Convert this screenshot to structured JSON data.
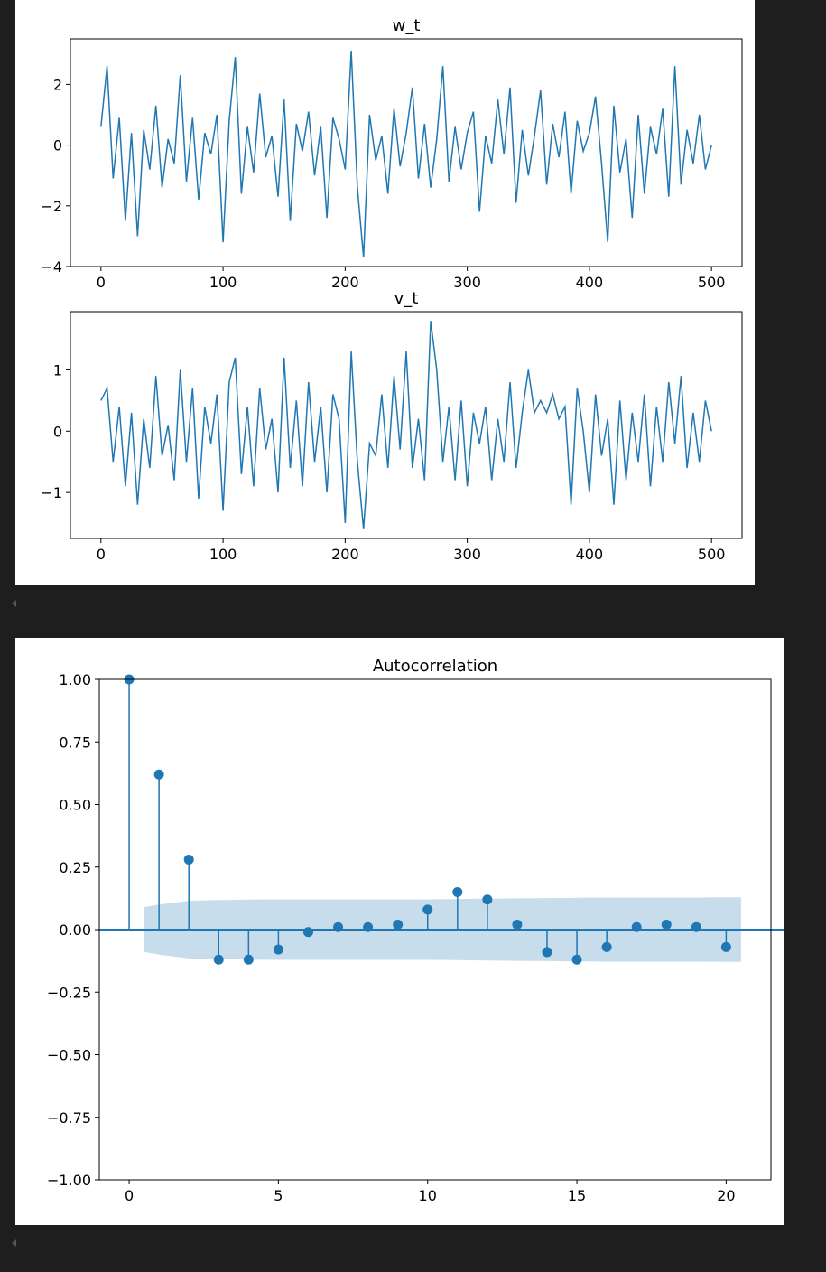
{
  "colors": {
    "series": "#1f77b4",
    "band": "#1f77b4",
    "background": "#1e1e1e"
  },
  "chart_data": [
    {
      "type": "line",
      "title": "w_t",
      "xlabel": "",
      "ylabel": "",
      "xlim": [
        -25,
        525
      ],
      "ylim": [
        -4,
        3.5
      ],
      "xticks": [
        0,
        100,
        200,
        300,
        400,
        500
      ],
      "yticks": [
        2,
        0,
        -2,
        -4
      ],
      "ytick_labels": [
        "2",
        "0",
        "−2",
        "−4"
      ],
      "series": [
        {
          "x": [
            0,
            5,
            10,
            15,
            20,
            25,
            30,
            35,
            40,
            45,
            50,
            55,
            60,
            65,
            70,
            75,
            80,
            85,
            90,
            95,
            100,
            105,
            110,
            115,
            120,
            125,
            130,
            135,
            140,
            145,
            150,
            155,
            160,
            165,
            170,
            175,
            180,
            185,
            190,
            195,
            200,
            205,
            210,
            215,
            220,
            225,
            230,
            235,
            240,
            245,
            250,
            255,
            260,
            265,
            270,
            275,
            280,
            285,
            290,
            295,
            300,
            305,
            310,
            315,
            320,
            325,
            330,
            335,
            340,
            345,
            350,
            355,
            360,
            365,
            370,
            375,
            380,
            385,
            390,
            395,
            400,
            405,
            410,
            415,
            420,
            425,
            430,
            435,
            440,
            445,
            450,
            455,
            460,
            465,
            470,
            475,
            480,
            485,
            490,
            495,
            500
          ],
          "y": [
            0.6,
            2.6,
            -1.1,
            0.9,
            -2.5,
            0.4,
            -3.0,
            0.5,
            -0.8,
            1.3,
            -1.4,
            0.2,
            -0.6,
            2.3,
            -1.2,
            0.9,
            -1.8,
            0.4,
            -0.3,
            1.0,
            -3.2,
            0.8,
            2.9,
            -1.6,
            0.6,
            -0.9,
            1.7,
            -0.4,
            0.3,
            -1.7,
            1.5,
            -2.5,
            0.7,
            -0.2,
            1.1,
            -1.0,
            0.6,
            -2.4,
            0.9,
            0.2,
            -0.8,
            3.1,
            -1.4,
            -3.7,
            1.0,
            -0.5,
            0.3,
            -1.6,
            1.2,
            -0.7,
            0.4,
            1.9,
            -1.1,
            0.7,
            -1.4,
            0.2,
            2.6,
            -1.2,
            0.6,
            -0.8,
            0.4,
            1.1,
            -2.2,
            0.3,
            -0.6,
            1.5,
            -0.3,
            1.9,
            -1.9,
            0.5,
            -1.0,
            0.3,
            1.8,
            -1.3,
            0.7,
            -0.4,
            1.1,
            -1.6,
            0.8,
            -0.2,
            0.4,
            1.6,
            -0.6,
            -3.2,
            1.3,
            -0.9,
            0.2,
            -2.4,
            1.0,
            -1.6,
            0.6,
            -0.3,
            1.2,
            -1.7,
            2.6,
            -1.3,
            0.5,
            -0.6,
            1.0,
            -0.8,
            0.0
          ]
        }
      ]
    },
    {
      "type": "line",
      "title": "v_t",
      "xlabel": "",
      "ylabel": "",
      "xlim": [
        -25,
        525
      ],
      "ylim": [
        -1.75,
        1.95
      ],
      "xticks": [
        0,
        100,
        200,
        300,
        400,
        500
      ],
      "yticks": [
        1,
        0,
        -1
      ],
      "ytick_labels": [
        "1",
        "0",
        "−1"
      ],
      "series": [
        {
          "x": [
            0,
            5,
            10,
            15,
            20,
            25,
            30,
            35,
            40,
            45,
            50,
            55,
            60,
            65,
            70,
            75,
            80,
            85,
            90,
            95,
            100,
            105,
            110,
            115,
            120,
            125,
            130,
            135,
            140,
            145,
            150,
            155,
            160,
            165,
            170,
            175,
            180,
            185,
            190,
            195,
            200,
            205,
            210,
            215,
            220,
            225,
            230,
            235,
            240,
            245,
            250,
            255,
            260,
            265,
            270,
            275,
            280,
            285,
            290,
            295,
            300,
            305,
            310,
            315,
            320,
            325,
            330,
            335,
            340,
            345,
            350,
            355,
            360,
            365,
            370,
            375,
            380,
            385,
            390,
            395,
            400,
            405,
            410,
            415,
            420,
            425,
            430,
            435,
            440,
            445,
            450,
            455,
            460,
            465,
            470,
            475,
            480,
            485,
            490,
            495,
            500
          ],
          "y": [
            0.5,
            0.7,
            -0.5,
            0.4,
            -0.9,
            0.3,
            -1.2,
            0.2,
            -0.6,
            0.9,
            -0.4,
            0.1,
            -0.8,
            1.0,
            -0.5,
            0.7,
            -1.1,
            0.4,
            -0.2,
            0.6,
            -1.3,
            0.8,
            1.2,
            -0.7,
            0.4,
            -0.9,
            0.7,
            -0.3,
            0.2,
            -1.0,
            1.2,
            -0.6,
            0.5,
            -0.9,
            0.8,
            -0.5,
            0.4,
            -1.0,
            0.6,
            0.2,
            -1.5,
            1.3,
            -0.5,
            -1.6,
            -0.2,
            -0.4,
            0.6,
            -0.6,
            0.9,
            -0.3,
            1.3,
            -0.6,
            0.2,
            -0.8,
            1.8,
            1.0,
            -0.5,
            0.4,
            -0.8,
            0.5,
            -0.9,
            0.3,
            -0.2,
            0.4,
            -0.8,
            0.2,
            -0.5,
            0.8,
            -0.6,
            0.3,
            1.0,
            0.3,
            0.5,
            0.3,
            0.6,
            0.2,
            0.4,
            -1.2,
            0.7,
            0.0,
            -1.0,
            0.6,
            -0.4,
            0.2,
            -1.2,
            0.5,
            -0.8,
            0.3,
            -0.5,
            0.6,
            -0.9,
            0.4,
            -0.5,
            0.8,
            -0.2,
            0.9,
            -0.6,
            0.3,
            -0.5,
            0.5,
            0.0
          ]
        }
      ]
    },
    {
      "type": "stem",
      "title": "Autocorrelation",
      "xlabel": "",
      "ylabel": "",
      "xlim": [
        -1,
        21.5
      ],
      "ylim": [
        -1.0,
        1.0
      ],
      "xticks": [
        0,
        5,
        10,
        15,
        20
      ],
      "yticks": [
        1.0,
        0.75,
        0.5,
        0.25,
        0.0,
        -0.25,
        -0.5,
        -0.75,
        -1.0
      ],
      "ytick_labels": [
        "1.00",
        "0.75",
        "0.50",
        "0.25",
        "0.00",
        "−0.25",
        "−0.50",
        "−0.75",
        "−1.00"
      ],
      "lags": [
        0,
        1,
        2,
        3,
        4,
        5,
        6,
        7,
        8,
        9,
        10,
        11,
        12,
        13,
        14,
        15,
        16,
        17,
        18,
        19,
        20
      ],
      "values": [
        1.0,
        0.62,
        0.28,
        -0.12,
        -0.12,
        -0.08,
        -0.01,
        0.01,
        0.01,
        0.02,
        0.08,
        0.15,
        0.12,
        0.02,
        -0.09,
        -0.12,
        -0.07,
        0.01,
        0.02,
        0.01,
        -0.07
      ],
      "conf_band": {
        "x": [
          0.5,
          1,
          2,
          3,
          4,
          5,
          6,
          7,
          8,
          9,
          10,
          11,
          12,
          13,
          14,
          15,
          16,
          17,
          18,
          19,
          20,
          20.5
        ],
        "upper": [
          0.09,
          0.1,
          0.115,
          0.118,
          0.12,
          0.121,
          0.121,
          0.121,
          0.121,
          0.121,
          0.121,
          0.122,
          0.124,
          0.125,
          0.126,
          0.127,
          0.128,
          0.128,
          0.128,
          0.128,
          0.129,
          0.129
        ],
        "lower": [
          -0.09,
          -0.1,
          -0.115,
          -0.118,
          -0.12,
          -0.121,
          -0.121,
          -0.121,
          -0.121,
          -0.121,
          -0.121,
          -0.122,
          -0.124,
          -0.125,
          -0.126,
          -0.127,
          -0.128,
          -0.128,
          -0.128,
          -0.128,
          -0.129,
          -0.129
        ]
      }
    }
  ]
}
